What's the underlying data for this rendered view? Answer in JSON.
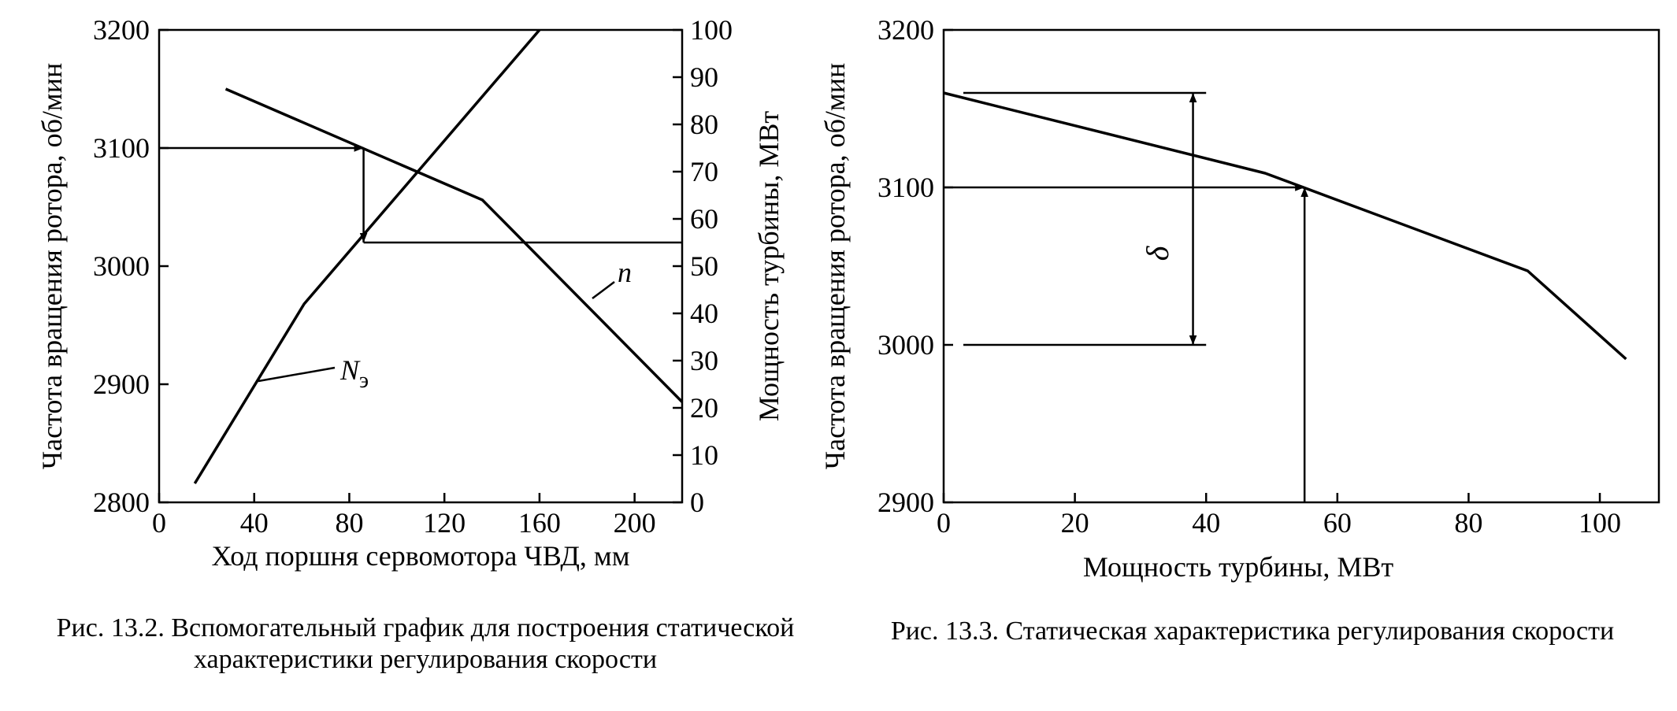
{
  "chart_data": [
    {
      "type": "line",
      "xlabel": "Ход поршня сервомотора ЧВД, мм",
      "ylabel": "Частота вращения ротора, об/мин",
      "y2label": "Мощность турбины, МВт",
      "xlim": [
        0,
        220
      ],
      "ylim": [
        2800,
        3200
      ],
      "y2lim": [
        0,
        100
      ],
      "x_ticks": [
        "0",
        "40",
        "80",
        "120",
        "160",
        "200"
      ],
      "y_ticks": [
        "2800",
        "2900",
        "3000",
        "3100",
        "3200"
      ],
      "y2_ticks": [
        "0",
        "10",
        "20",
        "30",
        "40",
        "50",
        "60",
        "70",
        "80",
        "90",
        "100"
      ],
      "grid": false,
      "series": [
        {
          "name": "n",
          "axis": "left",
          "x": [
            28,
            136,
            220
          ],
          "y": [
            3150,
            3056,
            2885
          ]
        },
        {
          "name": "Nэ",
          "axis": "right",
          "x": [
            15,
            61,
            160
          ],
          "y": [
            4,
            42,
            100
          ]
        }
      ],
      "annotations": [
        {
          "type": "hline-arrow",
          "y": 3100,
          "from_x": 0,
          "to_x": 86,
          "text": ""
        },
        {
          "type": "vline-arrow",
          "x": 86,
          "from_y": 3100,
          "to_y": 3020,
          "text": ""
        },
        {
          "type": "hline",
          "y": 3020,
          "from_x": 86,
          "to_x": 220,
          "text": ""
        }
      ]
    },
    {
      "type": "line",
      "xlabel": "Мощность турбины, МВт",
      "ylabel": "Частота вращения ротора, об/мин",
      "xlim": [
        0,
        109
      ],
      "ylim": [
        2900,
        3200
      ],
      "x_ticks": [
        "0",
        "20",
        "40",
        "60",
        "80",
        "100"
      ],
      "y_ticks": [
        "2900",
        "3000",
        "3100",
        "3200"
      ],
      "grid": false,
      "series": [
        {
          "name": "",
          "x": [
            0,
            49,
            89,
            104
          ],
          "y": [
            3160,
            3109,
            3047,
            2991
          ]
        }
      ],
      "annotations": [
        {
          "type": "hline-arrow",
          "y": 3100,
          "from_x": 0,
          "to_x": 55,
          "text": ""
        },
        {
          "type": "vline-arrow",
          "x": 55,
          "from_y": 2900,
          "to_y": 3100,
          "text": ""
        },
        {
          "type": "hline",
          "y": 3160,
          "from_x": 3,
          "to_x": 40,
          "text": ""
        },
        {
          "type": "hline",
          "y": 3000,
          "from_x": 3,
          "to_x": 40,
          "text": ""
        },
        {
          "type": "dimension",
          "x": 38,
          "from_y": 3000,
          "to_y": 3160,
          "text": "δ"
        }
      ]
    }
  ],
  "labels": {
    "chart1_n": "n",
    "chart1_ne_main": "N",
    "chart1_ne_sub": "э",
    "chart2_delta": "δ"
  },
  "captions": {
    "fig1": "Рис. 13.2. Вспомогательный график для построения статической характеристики регулирования скорости",
    "fig2": "Рис. 13.3. Статическая характеристика регулирования скорости"
  }
}
